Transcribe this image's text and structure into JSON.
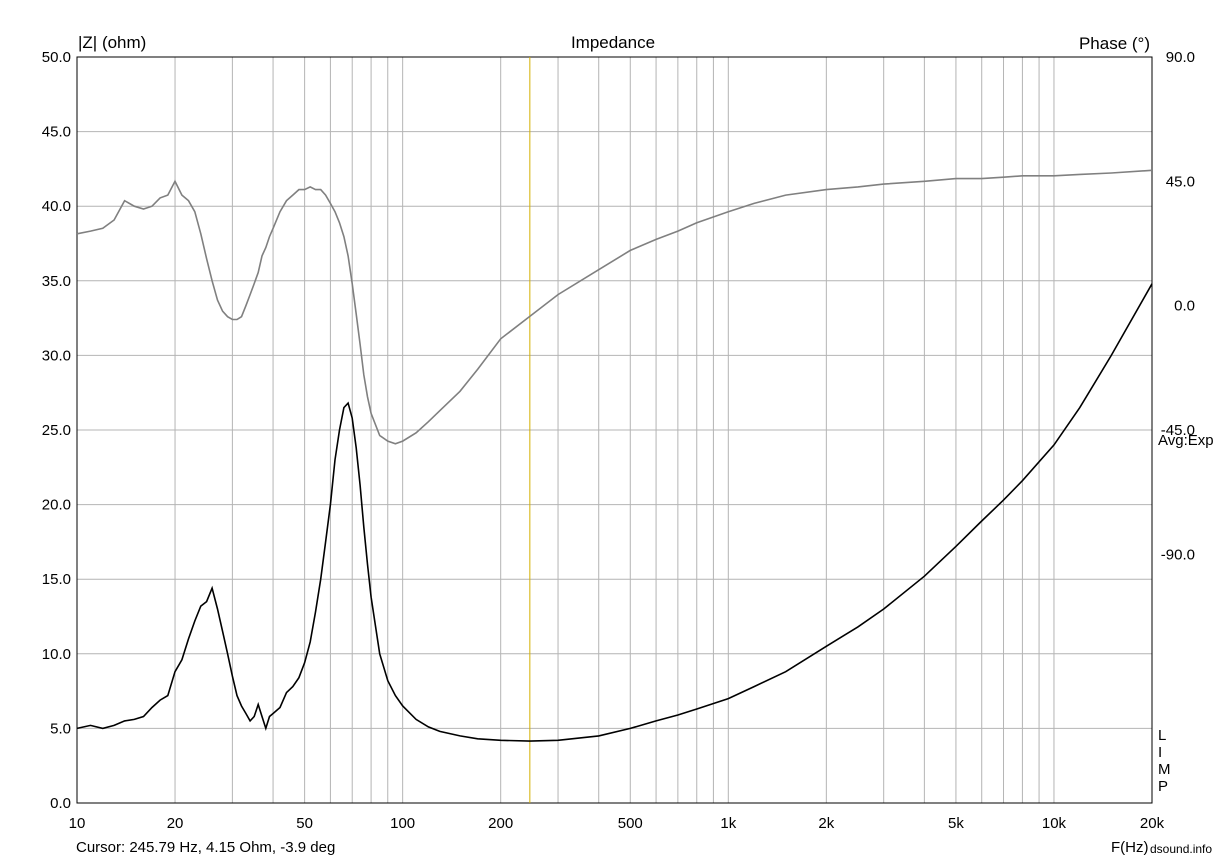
{
  "chart_data": {
    "type": "line",
    "title": "Impedance",
    "ylabel_left": "|Z| (ohm)",
    "ylabel_right": "Phase (°)",
    "xlabel": "F(Hz)",
    "x_scale": "log",
    "xlim": [
      10,
      20000
    ],
    "ylim_left": [
      0,
      50
    ],
    "ylim_right": [
      -180,
      90
    ],
    "x_ticks": [
      10,
      20,
      50,
      100,
      200,
      500,
      1000,
      2000,
      5000,
      10000,
      20000
    ],
    "x_tick_labels": [
      "10",
      "20",
      "50",
      "100",
      "200",
      "500",
      "1k",
      "2k",
      "5k",
      "10k",
      "20k"
    ],
    "y_ticks_left": [
      0,
      5,
      10,
      15,
      20,
      25,
      30,
      35,
      40,
      45,
      50
    ],
    "y_tick_labels_left": [
      "0.0",
      "5.0",
      "10.0",
      "15.0",
      "20.0",
      "25.0",
      "30.0",
      "35.0",
      "40.0",
      "45.0",
      "50.0"
    ],
    "y_ticks_right": [
      90,
      45,
      0,
      -45,
      -90
    ],
    "y_tick_labels_right": [
      "90.0",
      "45.0",
      "0.0",
      "-45.0",
      "-90.0"
    ],
    "grid": true,
    "averaging_label": "Avg:Exp",
    "limp_label": "LIMP",
    "cursor_text": "Cursor: 245.79 Hz, 4.15 Ohm, -3.9 deg",
    "cursor_freq": 245.79,
    "watermark": "dsound.info",
    "colors": {
      "impedance": "#000000",
      "phase": "#808080",
      "grid": "#b4b4b4",
      "cursor": "#d4b000"
    },
    "series": [
      {
        "name": "impedance",
        "axis": "left",
        "x": [
          10,
          11,
          12,
          13,
          14,
          15,
          16,
          17,
          18,
          19,
          20,
          21,
          22,
          23,
          24,
          25,
          26,
          27,
          28,
          29,
          30,
          31,
          32,
          33,
          34,
          35,
          36,
          37,
          38,
          39,
          40,
          42,
          44,
          46,
          48,
          50,
          52,
          54,
          56,
          58,
          60,
          62,
          64,
          66,
          68,
          70,
          72,
          74,
          76,
          78,
          80,
          85,
          90,
          95,
          100,
          110,
          120,
          130,
          150,
          170,
          200,
          245.79,
          300,
          400,
          500,
          600,
          700,
          800,
          1000,
          1200,
          1500,
          2000,
          2500,
          3000,
          4000,
          5000,
          6000,
          7000,
          8000,
          10000,
          12000,
          15000,
          20000
        ],
        "values": [
          5.0,
          5.2,
          5.0,
          5.2,
          5.5,
          5.6,
          5.8,
          6.4,
          6.9,
          7.2,
          8.8,
          9.6,
          11.0,
          12.2,
          13.2,
          13.5,
          14.4,
          13.0,
          11.5,
          10.0,
          8.5,
          7.2,
          6.5,
          6.0,
          5.5,
          5.8,
          6.6,
          5.8,
          5.0,
          5.8,
          6.0,
          6.4,
          7.4,
          7.8,
          8.4,
          9.4,
          10.8,
          12.8,
          15.0,
          17.5,
          20.0,
          23.0,
          25.0,
          26.5,
          26.8,
          25.8,
          23.8,
          21.3,
          18.5,
          16.0,
          13.8,
          10.0,
          8.2,
          7.2,
          6.5,
          5.6,
          5.1,
          4.8,
          4.5,
          4.3,
          4.2,
          4.15,
          4.2,
          4.5,
          5.0,
          5.5,
          5.9,
          6.3,
          7.0,
          7.8,
          8.8,
          10.5,
          11.8,
          13.0,
          15.2,
          17.2,
          18.9,
          20.3,
          21.6,
          24.0,
          26.5,
          30.0,
          34.8
        ]
      },
      {
        "name": "phase",
        "axis": "right",
        "x": [
          10,
          11,
          12,
          13,
          14,
          15,
          16,
          17,
          18,
          19,
          20,
          21,
          22,
          23,
          24,
          25,
          26,
          27,
          28,
          29,
          30,
          31,
          32,
          33,
          34,
          35,
          36,
          37,
          38,
          39,
          40,
          42,
          44,
          46,
          48,
          50,
          52,
          54,
          56,
          58,
          60,
          62,
          64,
          66,
          68,
          70,
          72,
          74,
          76,
          78,
          80,
          85,
          90,
          95,
          100,
          110,
          120,
          130,
          150,
          170,
          200,
          245.79,
          300,
          400,
          500,
          600,
          700,
          800,
          1000,
          1200,
          1500,
          2000,
          2500,
          3000,
          4000,
          5000,
          6000,
          7000,
          8000,
          10000,
          12000,
          15000,
          20000
        ],
        "values": [
          26,
          27,
          28,
          31,
          38,
          36,
          35,
          36,
          39,
          40,
          45,
          40,
          38,
          34,
          26,
          17,
          9,
          2,
          -2,
          -4,
          -5,
          -5,
          -4,
          0,
          4,
          8,
          12,
          18,
          21,
          25,
          28,
          34,
          38,
          40,
          42,
          42,
          43,
          42,
          42,
          40,
          37,
          34,
          30,
          25,
          18,
          8,
          -3,
          -14,
          -25,
          -33,
          -39,
          -47,
          -49,
          -50,
          -49,
          -46,
          -42,
          -38,
          -31,
          -23,
          -12,
          -3.9,
          4,
          13,
          20,
          24,
          27,
          30,
          34,
          37,
          40,
          42,
          43,
          44,
          45,
          46,
          46,
          46.5,
          47,
          47,
          47.5,
          48,
          49
        ]
      }
    ]
  }
}
